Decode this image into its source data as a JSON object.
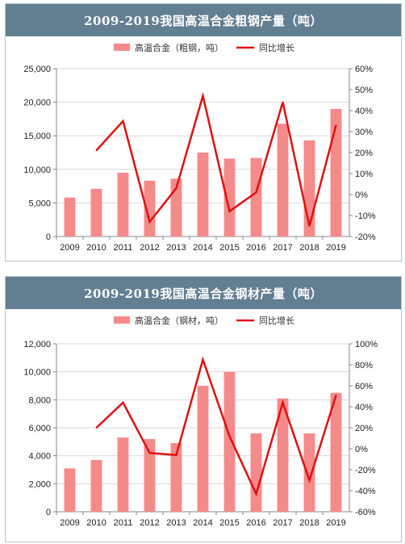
{
  "charts": [
    {
      "title": "2009-2019我国高温合金粗钢产量（吨）",
      "legend_bar": "高温合金（粗钢，吨）",
      "legend_line": "同比增长",
      "left_ticks": [
        "0",
        "5,000",
        "10,000",
        "15,000",
        "20,000",
        "25,000"
      ],
      "right_ticks": [
        "-20%",
        "-10%",
        "0%",
        "10%",
        "20%",
        "30%",
        "40%",
        "50%",
        "60%"
      ]
    },
    {
      "title": "2009-2019我国高温合金钢材产量（吨）",
      "legend_bar": "高温合金（钢材，吨）",
      "legend_line": "同比增长",
      "left_ticks": [
        "0",
        "2,000",
        "4,000",
        "6,000",
        "8,000",
        "10,000",
        "12,000"
      ],
      "right_ticks": [
        "-60%",
        "-40%",
        "-20%",
        "0%",
        "20%",
        "40%",
        "60%",
        "80%",
        "100%"
      ]
    }
  ],
  "colors": {
    "bar": "#f58a8a",
    "line": "#e01010",
    "title_bg": "#627f92"
  },
  "chart_data": [
    {
      "type": "bar",
      "title": "2009-2019我国高温合金粗钢产量（吨）",
      "categories": [
        "2009",
        "2010",
        "2011",
        "2012",
        "2013",
        "2014",
        "2015",
        "2016",
        "2017",
        "2018",
        "2019"
      ],
      "series": [
        {
          "name": "高温合金（粗钢，吨）",
          "type": "bar",
          "axis": "left",
          "values": [
            5800,
            7100,
            9500,
            8300,
            8600,
            12500,
            11600,
            11700,
            16800,
            14300,
            19000
          ]
        },
        {
          "name": "同比增长",
          "type": "line",
          "axis": "right",
          "values": [
            null,
            21,
            35,
            -13,
            3,
            47,
            -8,
            1,
            44,
            -15,
            33
          ]
        }
      ],
      "ylim_left": [
        0,
        25000
      ],
      "ylim_right": [
        -20,
        60
      ],
      "grid": true,
      "legend_position": "top"
    },
    {
      "type": "bar",
      "title": "2009-2019我国高温合金钢材产量（吨）",
      "categories": [
        "2009",
        "2010",
        "2011",
        "2012",
        "2013",
        "2014",
        "2015",
        "2016",
        "2017",
        "2018",
        "2019"
      ],
      "series": [
        {
          "name": "高温合金（钢材，吨）",
          "type": "bar",
          "axis": "left",
          "values": [
            3100,
            3700,
            5300,
            5200,
            4900,
            9000,
            10000,
            5600,
            8100,
            5600,
            8500
          ]
        },
        {
          "name": "同比增长",
          "type": "line",
          "axis": "right",
          "values": [
            null,
            20,
            44,
            -4,
            -6,
            85,
            12,
            -43,
            44,
            -30,
            51
          ]
        }
      ],
      "ylim_left": [
        0,
        12000
      ],
      "ylim_right": [
        -60,
        100
      ],
      "grid": true,
      "legend_position": "top"
    }
  ]
}
